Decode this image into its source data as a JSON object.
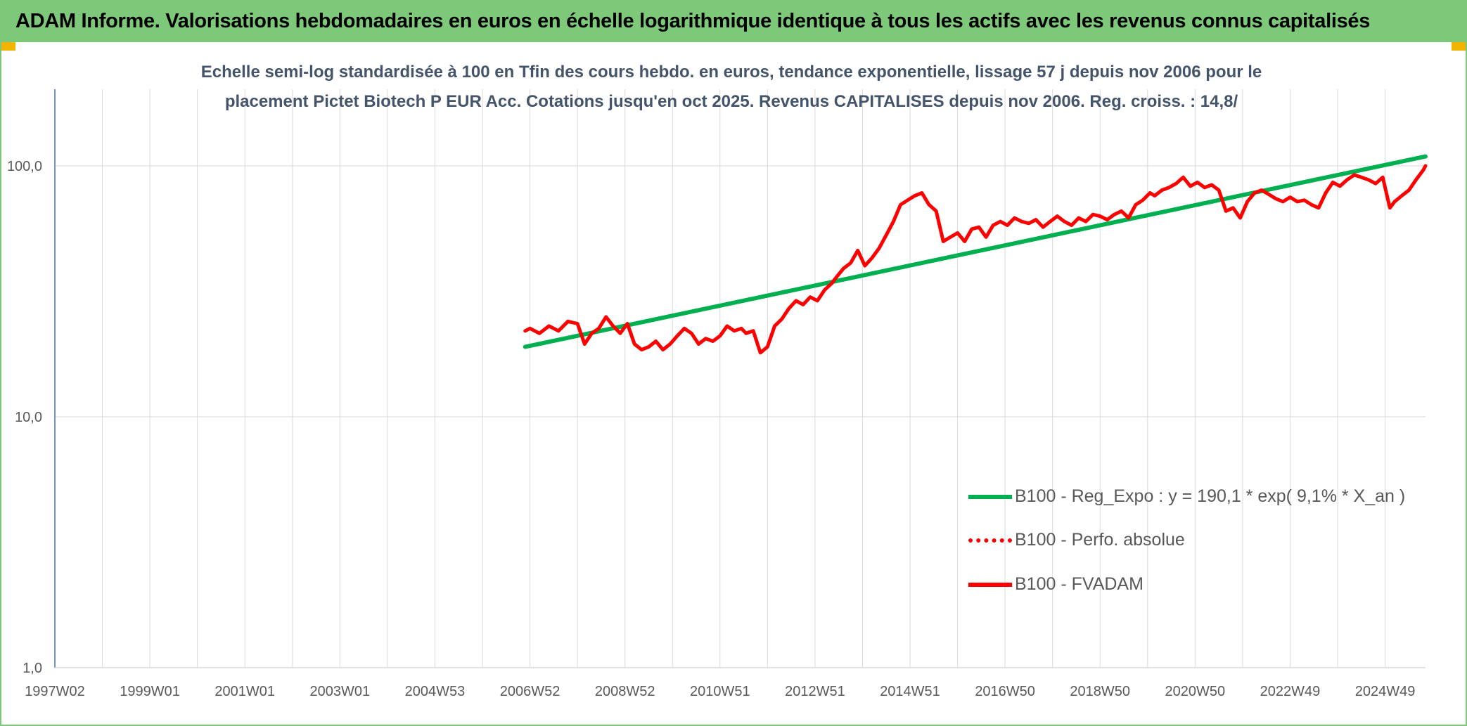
{
  "banner": {
    "text": "ADAM Informe. Valorisations hebdomadaires en euros en échelle logarithmique identique à tous les actifs avec les revenus connus capitalisés"
  },
  "colors": {
    "banner_bg": "#7ec87a",
    "frame_border": "#7ec87a",
    "corner_accent": "#f2b400",
    "grid": "#d9d9d9",
    "axis": "#4472c4",
    "trend": "#00b050",
    "price": "#ff0000",
    "tick_label": "#595959"
  },
  "chart_data": {
    "type": "line",
    "title": "Echelle semi-log standardisée à 100 en Tfin des cours hebdo. en euros, tendance exponentielle, lissage 57 j depuis nov 2006 pour le placement Pictet Biotech P EUR Acc. Cotations jusqu'en oct 2025. Revenus CAPITALISES depuis nov 2006. Reg. croiss. : 14,8/",
    "title_lines": [
      "Echelle semi-log standardisée à 100 en Tfin des cours hebdo. en euros, tendance exponentielle, lissage 57 j depuis nov 2006 pour le",
      "placement Pictet Biotech P EUR Acc. Cotations jusqu'en oct 2025. Revenus CAPITALISES depuis nov 2006. Reg. croiss. : 14,8/"
    ],
    "y_scale": "log",
    "ylim": [
      1,
      200
    ],
    "y_ticks": [
      1,
      10,
      100
    ],
    "y_tick_labels": [
      "1,0",
      "10,0",
      "100,0"
    ],
    "xlim": [
      1997.0,
      2025.85
    ],
    "x_gridlines": [
      1997.0,
      1998.0,
      1999.0,
      2000.0,
      2001.0,
      2002.0,
      2003.0,
      2004.0,
      2005.0,
      2006.0,
      2007.0,
      2008.0,
      2009.0,
      2010.0,
      2011.0,
      2012.0,
      2013.0,
      2014.0,
      2015.0,
      2016.0,
      2017.0,
      2018.0,
      2019.0,
      2020.0,
      2021.0,
      2022.0,
      2023.0,
      2024.0,
      2025.0
    ],
    "x_ticks": [
      1997.0,
      1999.0,
      2001.0,
      2003.0,
      2005.0,
      2007.0,
      2009.0,
      2011.0,
      2013.0,
      2015.0,
      2017.0,
      2019.0,
      2021.0,
      2023.0,
      2025.0
    ],
    "x_tick_labels": [
      "1997W02",
      "1999W01",
      "2001W01",
      "2003W01",
      "2004W53",
      "2006W52",
      "2008W52",
      "2010W51",
      "2012W51",
      "2014W51",
      "2016W50",
      "2018W50",
      "2020W50",
      "2022W49",
      "2024W49"
    ],
    "grid": true,
    "legend_position": "bottom-right",
    "series": [
      {
        "name": "B100 - Reg_Expo : y = 190,1 * exp( 9,1% *  X_an )",
        "style": "solid",
        "x": [
          2006.9,
          2025.85
        ],
        "y": [
          19.0,
          109.0
        ]
      },
      {
        "name": "B100 - Perfo. absolue",
        "style": "dotted",
        "x": [],
        "y": []
      },
      {
        "name": "B100 - FVADAM",
        "style": "solid",
        "x": [
          2006.9,
          2007.0,
          2007.2,
          2007.4,
          2007.6,
          2007.8,
          2008.0,
          2008.15,
          2008.3,
          2008.45,
          2008.6,
          2008.75,
          2008.9,
          2009.05,
          2009.2,
          2009.35,
          2009.5,
          2009.65,
          2009.8,
          2009.95,
          2010.1,
          2010.25,
          2010.4,
          2010.55,
          2010.7,
          2010.85,
          2011.0,
          2011.15,
          2011.3,
          2011.45,
          2011.55,
          2011.7,
          2011.85,
          2012.0,
          2012.15,
          2012.3,
          2012.45,
          2012.6,
          2012.75,
          2012.9,
          2013.05,
          2013.2,
          2013.35,
          2013.45,
          2013.6,
          2013.75,
          2013.9,
          2014.05,
          2014.2,
          2014.35,
          2014.5,
          2014.65,
          2014.8,
          2014.95,
          2015.1,
          2015.25,
          2015.4,
          2015.55,
          2015.7,
          2015.85,
          2016.0,
          2016.15,
          2016.3,
          2016.45,
          2016.6,
          2016.75,
          2016.9,
          2017.05,
          2017.2,
          2017.35,
          2017.5,
          2017.65,
          2017.8,
          2017.95,
          2018.1,
          2018.25,
          2018.4,
          2018.55,
          2018.7,
          2018.85,
          2019.0,
          2019.15,
          2019.3,
          2019.45,
          2019.6,
          2019.75,
          2019.9,
          2020.05,
          2020.15,
          2020.3,
          2020.45,
          2020.6,
          2020.75,
          2020.9,
          2021.05,
          2021.2,
          2021.35,
          2021.5,
          2021.65,
          2021.8,
          2021.95,
          2022.1,
          2022.25,
          2022.4,
          2022.55,
          2022.7,
          2022.85,
          2023.0,
          2023.15,
          2023.3,
          2023.45,
          2023.6,
          2023.75,
          2023.9,
          2024.05,
          2024.2,
          2024.35,
          2024.5,
          2024.65,
          2024.8,
          2024.95,
          2025.1,
          2025.2,
          2025.35,
          2025.5,
          2025.65,
          2025.8,
          2025.85
        ],
        "y": [
          22.0,
          22.5,
          21.5,
          23.0,
          22.0,
          24.0,
          23.5,
          19.5,
          21.5,
          22.5,
          25.0,
          23.0,
          21.5,
          23.5,
          19.5,
          18.5,
          19.0,
          20.0,
          18.5,
          19.5,
          21.0,
          22.5,
          21.5,
          19.5,
          20.5,
          20.0,
          21.0,
          23.0,
          22.0,
          22.5,
          21.5,
          22.0,
          18.0,
          19.0,
          23.0,
          24.5,
          27.0,
          29.0,
          28.0,
          30.0,
          29.0,
          32.0,
          34.0,
          36.0,
          39.0,
          41.0,
          46.0,
          40.0,
          43.0,
          47.0,
          53.0,
          60.0,
          70.0,
          73.0,
          76.0,
          78.0,
          70.0,
          66.0,
          50.0,
          52.0,
          54.0,
          50.0,
          56.0,
          57.0,
          52.0,
          58.0,
          60.0,
          58.0,
          62.0,
          60.0,
          59.0,
          61.0,
          57.0,
          60.0,
          63.0,
          60.0,
          58.0,
          62.0,
          60.0,
          64.0,
          63.0,
          61.0,
          64.0,
          66.0,
          62.0,
          70.0,
          73.0,
          78.0,
          76.0,
          80.0,
          82.0,
          85.0,
          90.0,
          83.0,
          86.0,
          82.0,
          84.0,
          80.0,
          66.0,
          68.0,
          62.0,
          72.0,
          78.0,
          80.0,
          77.0,
          74.0,
          72.0,
          75.0,
          72.0,
          73.0,
          70.0,
          68.0,
          78.0,
          86.0,
          83.0,
          88.0,
          92.0,
          90.0,
          88.0,
          85.0,
          90.0,
          68.0,
          72.0,
          76.0,
          80.0,
          88.0,
          96.0,
          100.0
        ]
      }
    ]
  }
}
